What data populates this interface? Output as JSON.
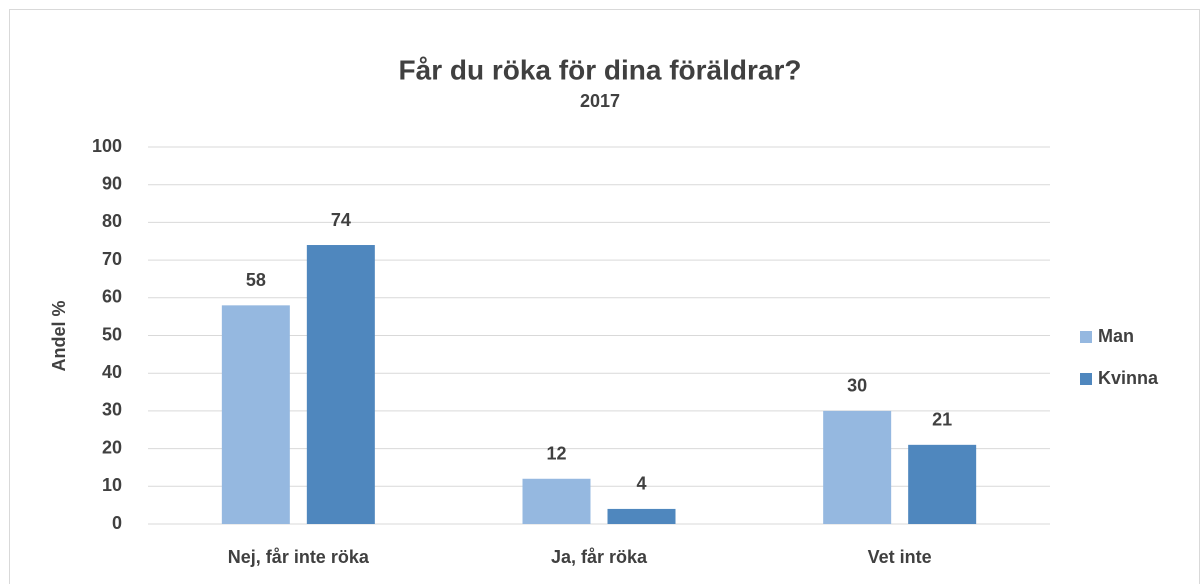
{
  "chart_data": {
    "type": "bar",
    "title": "Får du röka för dina föräldrar?",
    "subtitle": "2017",
    "y_label": "Andel %",
    "categories": [
      "Nej, får inte röka",
      "Ja, får röka",
      "Vet inte"
    ],
    "series": [
      {
        "name": "Man",
        "color": "#95b8e0",
        "values": [
          58,
          12,
          30
        ]
      },
      {
        "name": "Kvinna",
        "color": "#4f87be",
        "values": [
          74,
          4,
          21
        ]
      }
    ],
    "ylim": [
      0,
      100
    ],
    "yticks": [
      0,
      10,
      20,
      30,
      40,
      50,
      60,
      70,
      80,
      90,
      100
    ],
    "grid": true,
    "legend": "right"
  }
}
